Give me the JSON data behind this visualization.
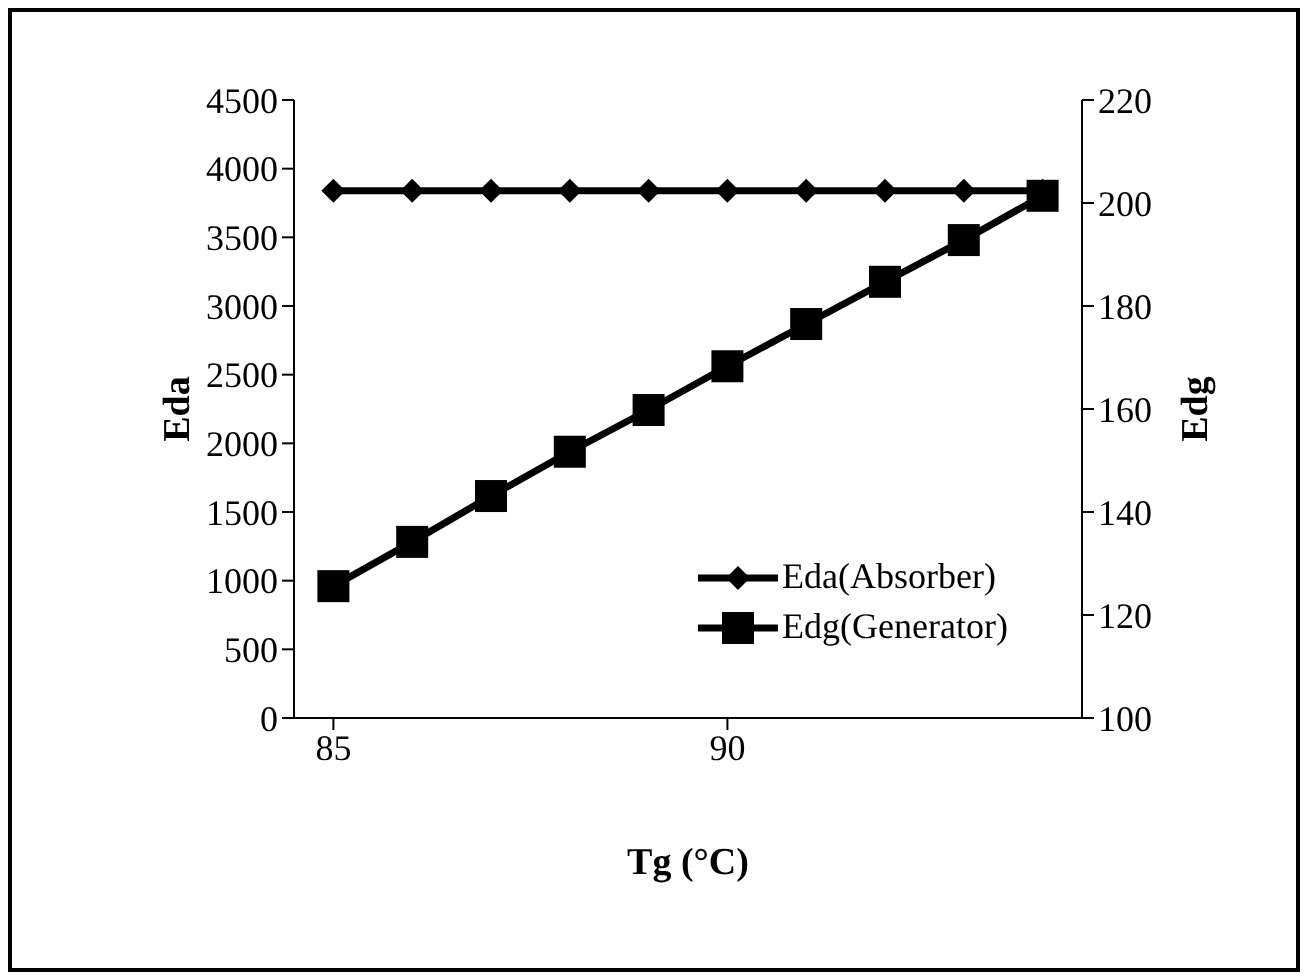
{
  "chart_data": {
    "type": "line",
    "xlabel": "Tg (°C)",
    "ylabel": "Eda",
    "y2label": "Edg",
    "x": [
      85,
      86,
      87,
      88,
      89,
      90,
      91,
      92,
      93,
      94
    ],
    "series": [
      {
        "name": "Eda(Absorber)",
        "color": "#000000",
        "marker": "diamond",
        "values": [
          3840,
          3840,
          3840,
          3840,
          3840,
          3840,
          3840,
          3840,
          3840,
          3840
        ]
      },
      {
        "name": "Edg(Generator)",
        "color": "#000000",
        "marker": "square",
        "axis": "y2",
        "values": [
          125.6,
          134.2,
          143.1,
          151.7,
          159.8,
          168.3,
          176.5,
          184.7,
          192.8,
          201.4
        ]
      }
    ],
    "xlim": [
      84.5,
      94.5
    ],
    "xticks": [
      85,
      90
    ],
    "ylim": [
      0,
      4500
    ],
    "yticks": [
      0,
      500,
      1000,
      1500,
      2000,
      2500,
      3000,
      3500,
      4000,
      4500
    ],
    "y2lim": [
      100,
      220
    ],
    "y2ticks": [
      100,
      120,
      140,
      160,
      180,
      200,
      220
    ],
    "grid": false,
    "legend": "bottom right",
    "line_style": "solid"
  }
}
